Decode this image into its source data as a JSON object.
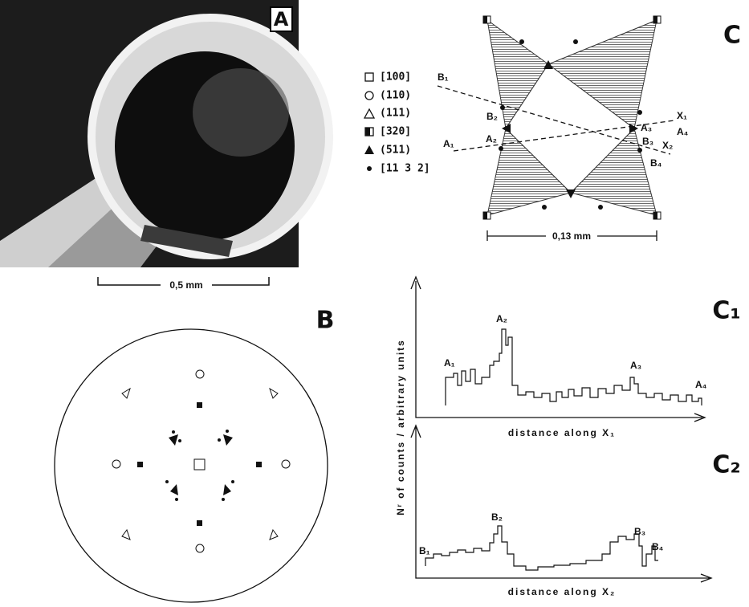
{
  "panel_a": {
    "label": "A",
    "scale": "0,5 mm"
  },
  "legend": [
    "[100]",
    "(110)",
    "(111)",
    "[320]",
    "(511)",
    "[11 3 2]"
  ],
  "panel_b": {
    "label": "B"
  },
  "panel_c": {
    "label": "C",
    "scale": "0,13 mm",
    "points": [
      "B₁",
      "B₂",
      "A₁",
      "A₂",
      "A₃",
      "B₃",
      "X₁",
      "A₄",
      "X₂",
      "B₄"
    ]
  },
  "panel_c1": {
    "label": "C₁",
    "y_axis": "Nʳ of counts / arbitrary units",
    "x_axis": "distance along X₁",
    "peaks": [
      "A₁",
      "A₂",
      "A₃",
      "A₄"
    ]
  },
  "panel_c2": {
    "label": "C₂",
    "x_axis": "distance along X₂",
    "peaks": [
      "B₁",
      "B₂",
      "B₃",
      "B₄"
    ]
  }
}
